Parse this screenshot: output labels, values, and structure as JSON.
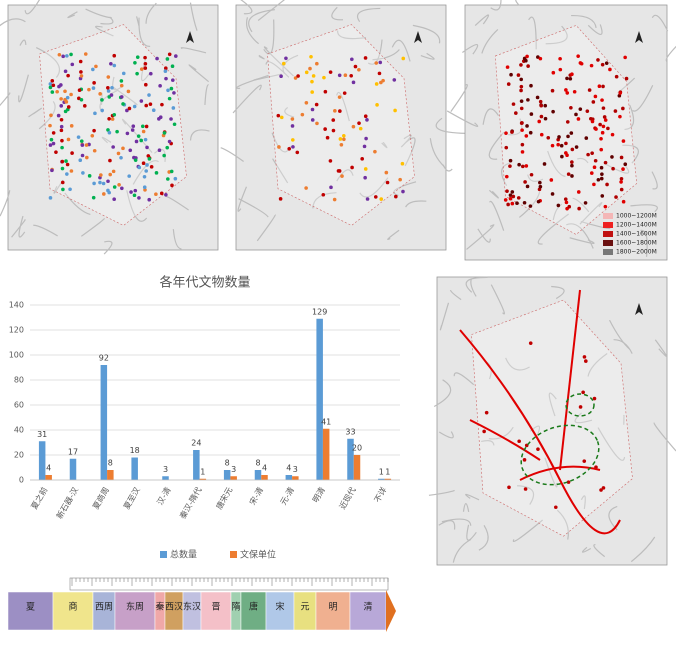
{
  "chart_data": {
    "type": "bar",
    "title": "各年代文物数量",
    "categories": [
      "夏之前",
      "新石器-汉",
      "夏商周",
      "夏至汉",
      "汉-清",
      "秦汉-隋代",
      "唐宋元",
      "宋-清",
      "元-清",
      "明清",
      "近现代",
      "不详"
    ],
    "series": [
      {
        "name": "总数量",
        "color": "#5b9bd5",
        "values": [
          31,
          17,
          92,
          18,
          3,
          24,
          8,
          8,
          4,
          129,
          33,
          1
        ]
      },
      {
        "name": "文保单位",
        "color": "#ed7d31",
        "values": [
          4,
          null,
          8,
          null,
          null,
          1,
          3,
          4,
          3,
          41,
          20,
          1
        ]
      }
    ],
    "ylim": [
      0,
      140
    ],
    "yticks": [
      0,
      20,
      40,
      60,
      80,
      100,
      120,
      140
    ],
    "grid": true,
    "legend": "bottom"
  },
  "elevation_legend": [
    "1000~1200M",
    "1200~1400M",
    "1400~1600M",
    "1600~1800M",
    "1800~2000M"
  ],
  "timeline": {
    "periods": [
      "夏",
      "商",
      "西周",
      "东周",
      "秦",
      "西汉",
      "东汉",
      "晋",
      "隋",
      "唐",
      "宋",
      "元",
      "明",
      "清"
    ]
  }
}
